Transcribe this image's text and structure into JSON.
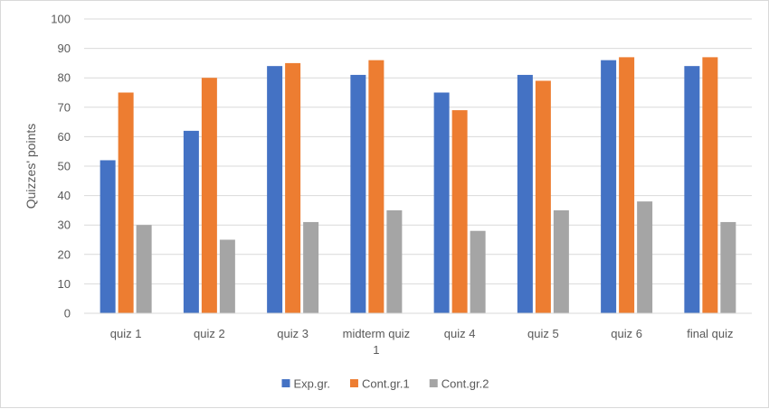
{
  "chart_data": {
    "type": "bar",
    "title": "",
    "xlabel": "",
    "ylabel": "Quizzes' points",
    "ylim": [
      0,
      100
    ],
    "yticks": [
      0,
      10,
      20,
      30,
      40,
      50,
      60,
      70,
      80,
      90,
      100
    ],
    "grid": true,
    "legend_position": "bottom",
    "categories": [
      [
        "quiz 1"
      ],
      [
        "quiz 2"
      ],
      [
        "quiz 3"
      ],
      [
        "midterm quiz",
        "1"
      ],
      [
        "quiz 4"
      ],
      [
        "quiz 5"
      ],
      [
        "quiz 6"
      ],
      [
        "final quiz"
      ]
    ],
    "series": [
      {
        "name": "Exp.gr.",
        "color": "#4472C4",
        "values": [
          52,
          62,
          84,
          81,
          75,
          81,
          86,
          84
        ]
      },
      {
        "name": "Cont.gr.1",
        "color": "#ED7D31",
        "values": [
          75,
          80,
          85,
          86,
          69,
          79,
          87,
          87
        ]
      },
      {
        "name": "Cont.gr.2",
        "color": "#A5A5A5",
        "values": [
          30,
          25,
          31,
          35,
          28,
          35,
          38,
          31
        ]
      }
    ]
  }
}
